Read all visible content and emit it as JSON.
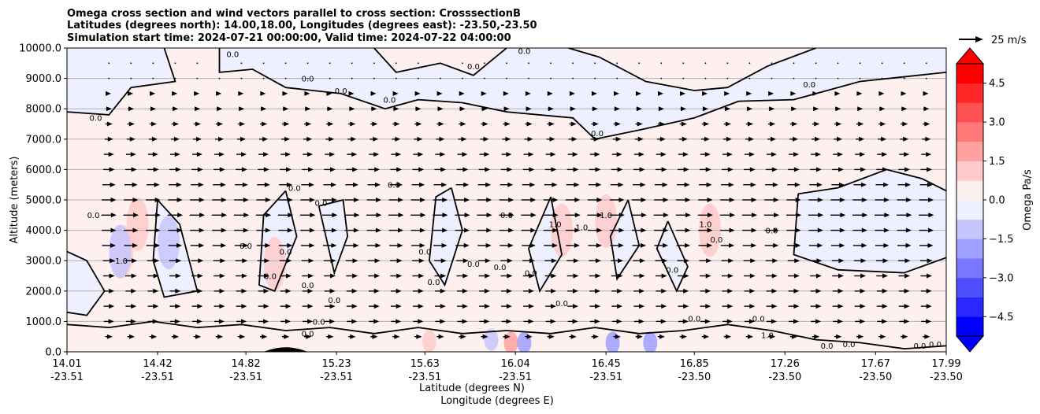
{
  "chart_data": {
    "type": "heatmap",
    "title_lines": [
      "Omega cross section and wind vectors parallel to cross section: CrosssectionB",
      "Latitudes (degrees north): 14.00,18.00, Longitudes (degrees east): -23.50,-23.50",
      "Simulation start time: 2024-07-21 00:00:00, Valid time: 2024-07-22 04:00:00"
    ],
    "xlabel_lines": [
      "Latitude (degrees N)",
      "Longitude (degrees E)"
    ],
    "ylabel": "Altitude (meters)",
    "ylim": [
      0,
      10000
    ],
    "xlim": [
      14.01,
      17.99
    ],
    "x_ticks": [
      {
        "lat": "14.01",
        "lon": "-23.51",
        "value": 14.01
      },
      {
        "lat": "14.42",
        "lon": "-23.51",
        "value": 14.42
      },
      {
        "lat": "14.82",
        "lon": "-23.51",
        "value": 14.82
      },
      {
        "lat": "15.23",
        "lon": "-23.51",
        "value": 15.23
      },
      {
        "lat": "15.63",
        "lon": "-23.51",
        "value": 15.63
      },
      {
        "lat": "16.04",
        "lon": "-23.51",
        "value": 16.04
      },
      {
        "lat": "16.45",
        "lon": "-23.51",
        "value": 16.45
      },
      {
        "lat": "16.85",
        "lon": "-23.50",
        "value": 16.85
      },
      {
        "lat": "17.26",
        "lon": "-23.50",
        "value": 17.26
      },
      {
        "lat": "17.67",
        "lon": "-23.50",
        "value": 17.67
      },
      {
        "lat": "17.99",
        "lon": "-23.50",
        "value": 17.99
      }
    ],
    "y_ticks": [
      {
        "label": "0.0",
        "value": 0
      },
      {
        "label": "1000.0",
        "value": 1000
      },
      {
        "label": "2000.0",
        "value": 2000
      },
      {
        "label": "3000.0",
        "value": 3000
      },
      {
        "label": "4000.0",
        "value": 4000
      },
      {
        "label": "5000.0",
        "value": 5000
      },
      {
        "label": "6000.0",
        "value": 6000
      },
      {
        "label": "7000.0",
        "value": 7000
      },
      {
        "label": "8000.0",
        "value": 8000
      },
      {
        "label": "9000.0",
        "value": 9000
      },
      {
        "label": "10000.0",
        "value": 10000
      }
    ],
    "grid": "horizontal",
    "colorbar": {
      "label": "Omega Pa/s",
      "range": [
        -5.25,
        5.25
      ],
      "extend": "both",
      "ticks": [
        {
          "label": "4.5",
          "value": 4.5
        },
        {
          "label": "3.0",
          "value": 3.0
        },
        {
          "label": "1.5",
          "value": 1.5
        },
        {
          "label": "0.0",
          "value": 0.0
        },
        {
          "label": "−1.5",
          "value": -1.5
        },
        {
          "label": "−3.0",
          "value": -3.0
        },
        {
          "label": "−4.5",
          "value": -4.5
        }
      ]
    },
    "quiver_key": {
      "label": "25 m/s",
      "speed": 25
    },
    "contour_level": 0.0,
    "wind_speed_by_altitude": [
      {
        "alt": 500,
        "speed": 10
      },
      {
        "alt": 1000,
        "speed": 14
      },
      {
        "alt": 1500,
        "speed": 15
      },
      {
        "alt": 2000,
        "speed": 15
      },
      {
        "alt": 2500,
        "speed": 16
      },
      {
        "alt": 3000,
        "speed": 17
      },
      {
        "alt": 3500,
        "speed": 19
      },
      {
        "alt": 4000,
        "speed": 20
      },
      {
        "alt": 4500,
        "speed": 21
      },
      {
        "alt": 5000,
        "speed": 20
      },
      {
        "alt": 5500,
        "speed": 18
      },
      {
        "alt": 6000,
        "speed": 16
      },
      {
        "alt": 6500,
        "speed": 14
      },
      {
        "alt": 7000,
        "speed": 12
      },
      {
        "alt": 7500,
        "speed": 10
      },
      {
        "alt": 8000,
        "speed": 8
      },
      {
        "alt": 8500,
        "speed": 6
      },
      {
        "alt": 9000,
        "speed": 3
      },
      {
        "alt": 9500,
        "speed": 2
      }
    ],
    "omega_patches": [
      {
        "lat": 14.95,
        "alt": 2900,
        "omega": 1.0
      },
      {
        "lat": 15.47,
        "alt": 3300,
        "omega": 0.7
      },
      {
        "lat": 16.25,
        "alt": 4000,
        "omega": 1.2
      },
      {
        "lat": 16.45,
        "alt": 4300,
        "omega": 1.2
      },
      {
        "lat": 16.92,
        "alt": 4000,
        "omega": 1.3
      },
      {
        "lat": 14.26,
        "alt": 3300,
        "omega": 0.9
      },
      {
        "lat": 14.33,
        "alt": 4200,
        "omega": 0.8
      },
      {
        "lat": 14.25,
        "alt": 3300,
        "omega": -1.2
      },
      {
        "lat": 14.47,
        "alt": 3600,
        "omega": -0.8
      },
      {
        "lat": 16.02,
        "alt": 300,
        "omega": 2.2
      },
      {
        "lat": 16.08,
        "alt": 300,
        "omega": -2.2
      },
      {
        "lat": 16.48,
        "alt": 300,
        "omega": -1.8
      },
      {
        "lat": 16.65,
        "alt": 300,
        "omega": -1.9
      },
      {
        "lat": 15.65,
        "alt": 350,
        "omega": 0.9
      },
      {
        "lat": 15.93,
        "alt": 400,
        "omega": -1.2
      }
    ],
    "contour_labels": [
      {
        "text": "0.0",
        "lat": 14.44,
        "alt": 10000
      },
      {
        "text": "0.0",
        "lat": 14.76,
        "alt": 9700
      },
      {
        "text": "0.0",
        "lat": 15.1,
        "alt": 8900
      },
      {
        "text": "0.0",
        "lat": 15.25,
        "alt": 8500
      },
      {
        "text": "0.0",
        "lat": 15.47,
        "alt": 8200
      },
      {
        "text": "0.0",
        "lat": 15.85,
        "alt": 9300
      },
      {
        "text": "0.0",
        "lat": 16.08,
        "alt": 9800
      },
      {
        "text": "0.0",
        "lat": 16.41,
        "alt": 7100
      },
      {
        "text": "0.0",
        "lat": 17.37,
        "alt": 8700
      },
      {
        "text": "0.0",
        "lat": 14.14,
        "alt": 7600
      },
      {
        "text": "0.0",
        "lat": 15.04,
        "alt": 5300
      },
      {
        "text": "0.0",
        "lat": 15.16,
        "alt": 4800
      },
      {
        "text": "0.0",
        "lat": 15.49,
        "alt": 5400
      },
      {
        "text": "0.0",
        "lat": 14.82,
        "alt": 3400
      },
      {
        "text": "0.0",
        "lat": 15.0,
        "alt": 3200
      },
      {
        "text": "0.0",
        "lat": 15.63,
        "alt": 3200
      },
      {
        "text": "0.0",
        "lat": 15.67,
        "alt": 2200
      },
      {
        "text": "0.0",
        "lat": 14.93,
        "alt": 2400
      },
      {
        "text": "0.0",
        "lat": 15.22,
        "alt": 1600
      },
      {
        "text": "0.0",
        "lat": 15.1,
        "alt": 2100
      },
      {
        "text": "0.0",
        "lat": 16.0,
        "alt": 4400
      },
      {
        "text": "0.0",
        "lat": 15.85,
        "alt": 2800
      },
      {
        "text": "0.0",
        "lat": 15.97,
        "alt": 2700
      },
      {
        "text": "0.0",
        "lat": 16.11,
        "alt": 2500
      },
      {
        "text": "1.0",
        "lat": 16.22,
        "alt": 4100
      },
      {
        "text": "1.0",
        "lat": 16.34,
        "alt": 4000
      },
      {
        "text": "1.0",
        "lat": 16.45,
        "alt": 4400
      },
      {
        "text": "0.0",
        "lat": 16.25,
        "alt": 1500
      },
      {
        "text": "0.0",
        "lat": 16.75,
        "alt": 2600
      },
      {
        "text": "1.0",
        "lat": 16.9,
        "alt": 4100
      },
      {
        "text": "0.0",
        "lat": 16.95,
        "alt": 3600
      },
      {
        "text": "0.0",
        "lat": 17.2,
        "alt": 3900
      },
      {
        "text": "-1.0",
        "lat": 14.25,
        "alt": 2900
      },
      {
        "text": "0.0",
        "lat": 14.13,
        "alt": 4400
      },
      {
        "text": "0.0",
        "lat": 15.15,
        "alt": 900
      },
      {
        "text": "0.0",
        "lat": 15.1,
        "alt": 500
      },
      {
        "text": "0.0",
        "lat": 16.85,
        "alt": 1000
      },
      {
        "text": "0.0",
        "lat": 17.14,
        "alt": 1000
      },
      {
        "text": "0.0",
        "lat": 17.45,
        "alt": 100
      },
      {
        "text": "0.0",
        "lat": 17.55,
        "alt": 150
      },
      {
        "text": "0.0",
        "lat": 17.87,
        "alt": 100
      },
      {
        "text": "0.0",
        "lat": 17.94,
        "alt": 150
      },
      {
        "text": "1.0",
        "lat": 17.18,
        "alt": 450
      }
    ]
  }
}
